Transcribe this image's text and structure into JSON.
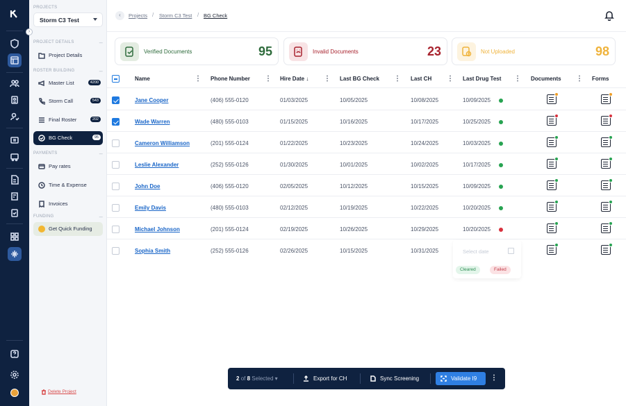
{
  "sidebar": {
    "projects_label": "PROJECTS",
    "project_name": "Storm C3 Test",
    "project_details_section": "PROJECT DETAILS",
    "project_details_item": "Project Details",
    "roster_section": "ROSTER BUILDING",
    "roster_items": [
      {
        "label": "Master List",
        "count": "4200"
      },
      {
        "label": "Storm Call",
        "count": "543"
      },
      {
        "label": "Final Roster",
        "count": "202"
      },
      {
        "label": "BG Check",
        "count": "95"
      }
    ],
    "payments_section": "PAYMENTS",
    "payment_items": [
      "Pay rates",
      "Time & Expense",
      "Invoices"
    ],
    "funding_section": "FUNDING",
    "funding_item": "Get Quick Funding",
    "delete_project": "Delete Project"
  },
  "breadcrumb": {
    "items": [
      "Projects",
      "Storm C3 Test",
      "BG Check"
    ]
  },
  "stats": [
    {
      "label": "Verified Documents",
      "value": "95",
      "color": "#2e6b3c",
      "bg": "#e3ece1"
    },
    {
      "label": "Invalid Documents",
      "value": "23",
      "color": "#a8232e",
      "bg": "#f8e3e5"
    },
    {
      "label": "Not Uploaded",
      "value": "98",
      "color": "#efb33c",
      "bg": "#fdf3df"
    }
  ],
  "table": {
    "columns": [
      "Name",
      "Phone Number",
      "Hire Date",
      "Last BG Check",
      "Last CH",
      "Last Drug Test",
      "Documents",
      "Forms"
    ],
    "rows": [
      {
        "name": "Jane Cooper",
        "phone": "(406) 555-0120",
        "hire": "01/03/2025",
        "bg": "10/05/2025",
        "ch": "10/08/2025",
        "drug": "10/09/2025",
        "drug_status": "green",
        "doc": "orange",
        "form": "orange",
        "checked": true
      },
      {
        "name": "Wade Warren",
        "phone": "(480) 555-0103",
        "hire": "01/15/2025",
        "bg": "10/16/2025",
        "ch": "10/17/2025",
        "drug": "10/25/2025",
        "drug_status": "green",
        "doc": "red",
        "form": "red",
        "checked": true
      },
      {
        "name": "Cameron Williamson",
        "phone": "(201) 555-0124",
        "hire": "01/22/2025",
        "bg": "10/23/2025",
        "ch": "10/24/2025",
        "drug": "10/03/2025",
        "drug_status": "green",
        "doc": "green",
        "form": "green",
        "checked": false
      },
      {
        "name": "Leslie Alexander",
        "phone": "(252) 555-0126",
        "hire": "01/30/2025",
        "bg": "10/01/2025",
        "ch": "10/02/2025",
        "drug": "10/17/2025",
        "drug_status": "green",
        "doc": "green",
        "form": "green",
        "checked": false
      },
      {
        "name": "John Doe",
        "phone": "(406) 555-0120",
        "hire": "02/05/2025",
        "bg": "10/12/2025",
        "ch": "10/15/2025",
        "drug": "10/09/2025",
        "drug_status": "green",
        "doc": "green",
        "form": "green",
        "checked": false
      },
      {
        "name": "Emily Davis",
        "phone": "(480) 555-0103",
        "hire": "02/12/2025",
        "bg": "10/19/2025",
        "ch": "10/22/2025",
        "drug": "10/20/2025",
        "drug_status": "green",
        "doc": "green",
        "form": "green",
        "checked": false
      },
      {
        "name": "Michael Johnson",
        "phone": "(201) 555-0124",
        "hire": "02/19/2025",
        "bg": "10/26/2025",
        "ch": "10/29/2025",
        "drug": "10/20/2025",
        "drug_status": "red",
        "doc": "green",
        "form": "green",
        "checked": false
      },
      {
        "name": "Sophia Smith",
        "phone": "(252) 555-0126",
        "hire": "02/26/2025",
        "bg": "10/15/2025",
        "ch": "10/31/2025",
        "drug": "",
        "drug_status": "",
        "doc": "green",
        "form": "green",
        "checked": false
      }
    ]
  },
  "drug_filter": {
    "placeholder": "Select date",
    "cleared": "Cleared",
    "failed": "Failed"
  },
  "actionbar": {
    "selected_count": "2",
    "selected_of": "of",
    "selected_total": "8",
    "selected_label": "Selected",
    "export": "Export for CH",
    "sync": "Sync Screening",
    "validate": "Validate I9"
  },
  "colors": {
    "green": "#27a351",
    "red": "#d8313d",
    "orange": "#f0a02a",
    "navy": "#0f2240"
  }
}
